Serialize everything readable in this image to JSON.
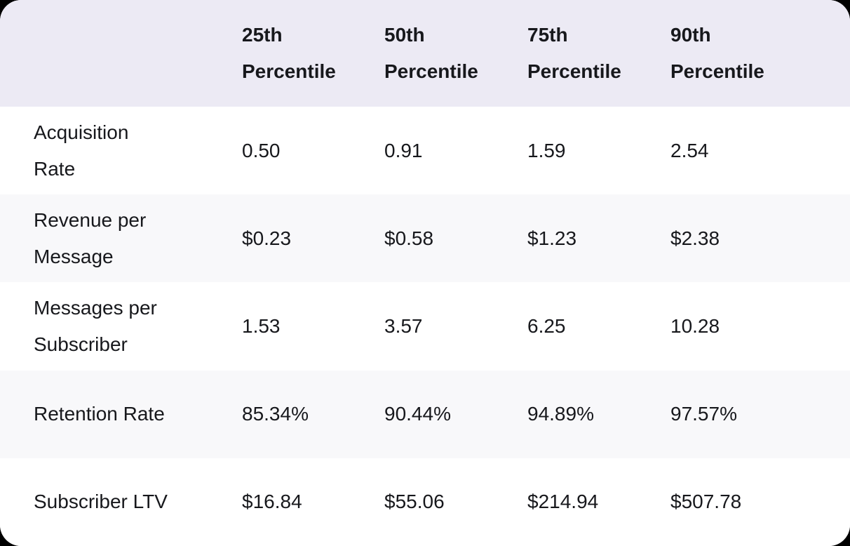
{
  "colors": {
    "page_bg": "#000000",
    "header_bg": "#ECEAF4",
    "row_bg": "#FFFFFF",
    "row_alt_bg": "#F8F8FA",
    "text": "#17181C"
  },
  "chart_data": {
    "type": "table",
    "columns": [
      "",
      "25th Percentile",
      "50th Percentile",
      "75th Percentile",
      "90th Percentile"
    ],
    "rows": [
      {
        "label": "Acquisition Rate",
        "values": [
          "0.50",
          "0.91",
          "1.59",
          "2.54"
        ]
      },
      {
        "label": "Revenue per Message",
        "values": [
          "$0.23",
          "$0.58",
          "$1.23",
          "$2.38"
        ]
      },
      {
        "label": "Messages per Subscriber",
        "values": [
          "1.53",
          "3.57",
          "6.25",
          "10.28"
        ]
      },
      {
        "label": "Retention Rate",
        "values": [
          "85.34%",
          "90.44%",
          "94.89%",
          "97.57%"
        ]
      },
      {
        "label": "Subscriber LTV",
        "values": [
          "$16.84",
          "$55.06",
          "$214.94",
          "$507.78"
        ]
      }
    ]
  }
}
